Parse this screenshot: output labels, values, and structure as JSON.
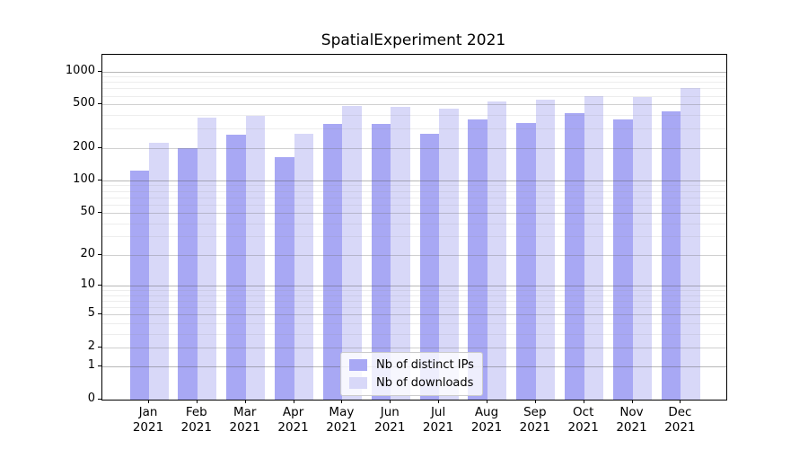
{
  "chart_data": {
    "type": "bar",
    "title": "SpatialExperiment 2021",
    "categories": [
      "Jan",
      "Feb",
      "Mar",
      "Apr",
      "May",
      "Jun",
      "Jul",
      "Aug",
      "Sep",
      "Oct",
      "Nov",
      "Dec"
    ],
    "x_sub_label": "2021",
    "series": [
      {
        "name": "Nb of distinct IPs",
        "color": "#a8a8f4",
        "values": [
          122,
          200,
          262,
          164,
          332,
          331,
          267,
          363,
          339,
          417,
          361,
          431
        ]
      },
      {
        "name": "Nb of downloads",
        "color": "#d8d8f8",
        "values": [
          221,
          377,
          390,
          270,
          479,
          477,
          456,
          534,
          551,
          598,
          587,
          701
        ]
      }
    ],
    "y_ticks": [
      0,
      1,
      2,
      5,
      10,
      20,
      50,
      100,
      200,
      500,
      1000
    ],
    "y_scale": "log1p",
    "ylim": [
      0,
      1000
    ],
    "grid": true,
    "legend_position": "lower center",
    "background_color": "#ffffff",
    "text_color": "#000000"
  }
}
